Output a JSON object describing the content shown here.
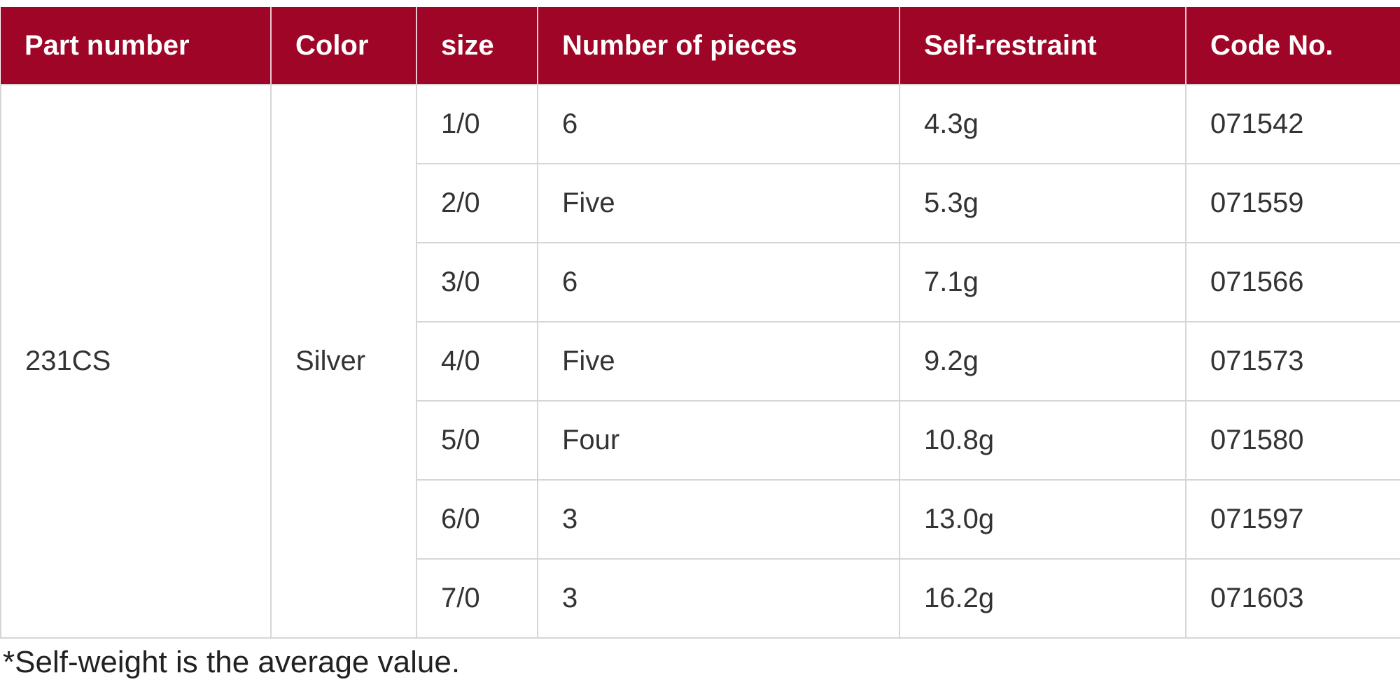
{
  "table": {
    "headers": [
      "Part number",
      "Color",
      "size",
      "Number of pieces",
      "Self-restraint",
      "Code No."
    ],
    "part_number": "231CS",
    "color": "Silver",
    "rows": [
      {
        "size": "1/0",
        "pieces": "6",
        "weight": "4.3g",
        "code": "071542"
      },
      {
        "size": "2/0",
        "pieces": "Five",
        "weight": "5.3g",
        "code": "071559"
      },
      {
        "size": "3/0",
        "pieces": "6",
        "weight": "7.1g",
        "code": "071566"
      },
      {
        "size": "4/0",
        "pieces": "Five",
        "weight": "9.2g",
        "code": "071573"
      },
      {
        "size": "5/0",
        "pieces": "Four",
        "weight": "10.8g",
        "code": "071580"
      },
      {
        "size": "6/0",
        "pieces": "3",
        "weight": "13.0g",
        "code": "071597"
      },
      {
        "size": "7/0",
        "pieces": "3",
        "weight": "16.2g",
        "code": "071603"
      }
    ]
  },
  "footnote": "*Self-weight is the average value.",
  "colors": {
    "header_bg": "#9e0526",
    "header_text": "#ffffff",
    "border": "#d6d6d6"
  }
}
